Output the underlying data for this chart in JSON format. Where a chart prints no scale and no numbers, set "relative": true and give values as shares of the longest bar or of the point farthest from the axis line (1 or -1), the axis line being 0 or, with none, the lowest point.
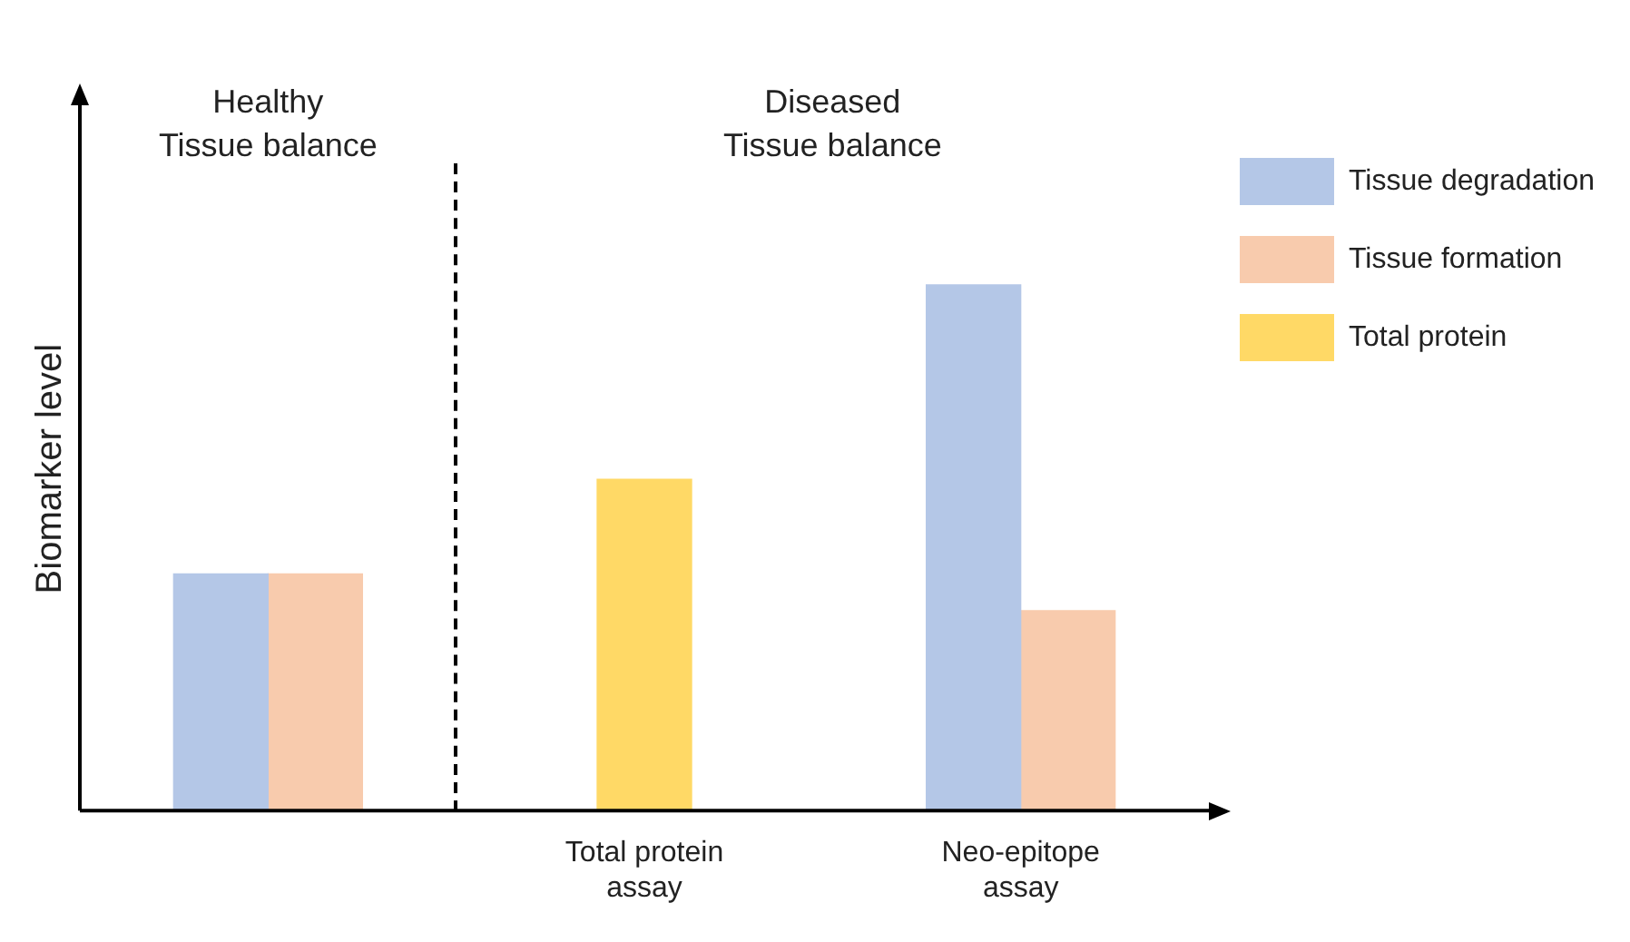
{
  "chart_data": {
    "type": "bar",
    "relative": true,
    "ylabel": "Biomarker level",
    "categories": [
      null,
      "Total protein\nassay",
      "Neo-epitope\nassay"
    ],
    "series": [
      {
        "name": "Tissue degradation",
        "color": "#b4c7e7",
        "values": [
          0.45,
          null,
          1
        ]
      },
      {
        "name": "Tissue formation",
        "color": "#f8cbad",
        "values": [
          0.45,
          null,
          0.38
        ]
      },
      {
        "name": "Total protein",
        "color": "#ffd966",
        "values": [
          null,
          0.63,
          null
        ]
      }
    ],
    "annotations": [
      "Healthy\nTissue balance",
      "Diseased\nTissue balance"
    ],
    "legend": "top right",
    "grid": false
  }
}
